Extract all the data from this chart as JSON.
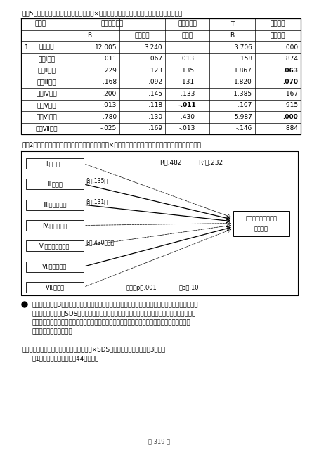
{
  "title_table": "【表5】　「居場所」の心理的機能各因子×アイデンティティ確立尺度得点の重回帰分析結果",
  "title_figure": "【図2】　「居場所」の心理的機能尺度各因子得点×アイデンティティ確立尺度得点の重回帰分析パス図",
  "table_headers_row1": [
    "モデル",
    "非標準化係数",
    "標準化係数",
    "T",
    "有意確率"
  ],
  "table_headers_row2": [
    "B",
    "標準誤差",
    "ベータ",
    "B",
    "標準誤差"
  ],
  "table_data": [
    [
      "1",
      "（定数）",
      "12.005",
      "3.240",
      "",
      "3.706",
      ".000"
    ],
    [
      "",
      "因子Ⅰ合計",
      ".011",
      ".067",
      ".013",
      ".158",
      ".874"
    ],
    [
      "",
      "因子Ⅱ合計",
      ".229",
      ".123",
      ".135",
      "1.867",
      ".063"
    ],
    [
      "",
      "因子Ⅲ合計",
      ".168",
      ".092",
      ".131",
      "1.820",
      ".070"
    ],
    [
      "",
      "因子Ⅳ合計",
      "-.200",
      ".145",
      "-.133",
      "-1.385",
      ".167"
    ],
    [
      "",
      "因子Ⅴ合計",
      "-.013",
      ".118",
      "-.011",
      "-.107",
      ".915"
    ],
    [
      "",
      "因子Ⅵ合計",
      ".780",
      ".130",
      ".430",
      "5.987",
      ".000"
    ],
    [
      "",
      "因子Ⅶ合計",
      "-.025",
      ".169",
      "-.013",
      "-.146",
      ".884"
    ]
  ],
  "path_boxes_left": [
    "Ⅰ.被受容感",
    "Ⅱ.自然体",
    "Ⅲ.思考・内省",
    "Ⅳ.行動の自由",
    "Ⅴ.他者からの自由",
    "Ⅵ.自己肯定感",
    "Ⅶ.高揚感"
  ],
  "path_box_right_line1": "アイデンティティの",
  "path_box_right_line2": "確立得点",
  "r_text1": "R＝.482",
  "r_text2": "R²＝.232",
  "sig_text": "＊＊＊p＜.001",
  "sig_text2": "＋p＜.10",
  "label_135": "β＝.135＋",
  "label_131": "β＝.131＋",
  "label_430": "β＝.430＊＊＊",
  "bullet_lines": [
    "　これ以降は、3種類の各「居場所」を選択した被調査者のデータのみをピックアップして、「居場",
    "所」の心理的機能とSDS得点、アイデンティティ確立の関係性を重回帰分析によってそれぞれ見",
    "ていく。なお、原稿掲載の都合上、結果については、説明文は一切省き、パス図のみの掲載とな",
    "る点をご了承頂きたい。"
  ],
  "footer1": "㉕「居場所」の心理的機能尺度各因子得点×SDS得点の重回帰分析　【図3参照】",
  "footer2": "（1人の居場所の被調査者44名のみ）",
  "page_number": "－ 319 －"
}
